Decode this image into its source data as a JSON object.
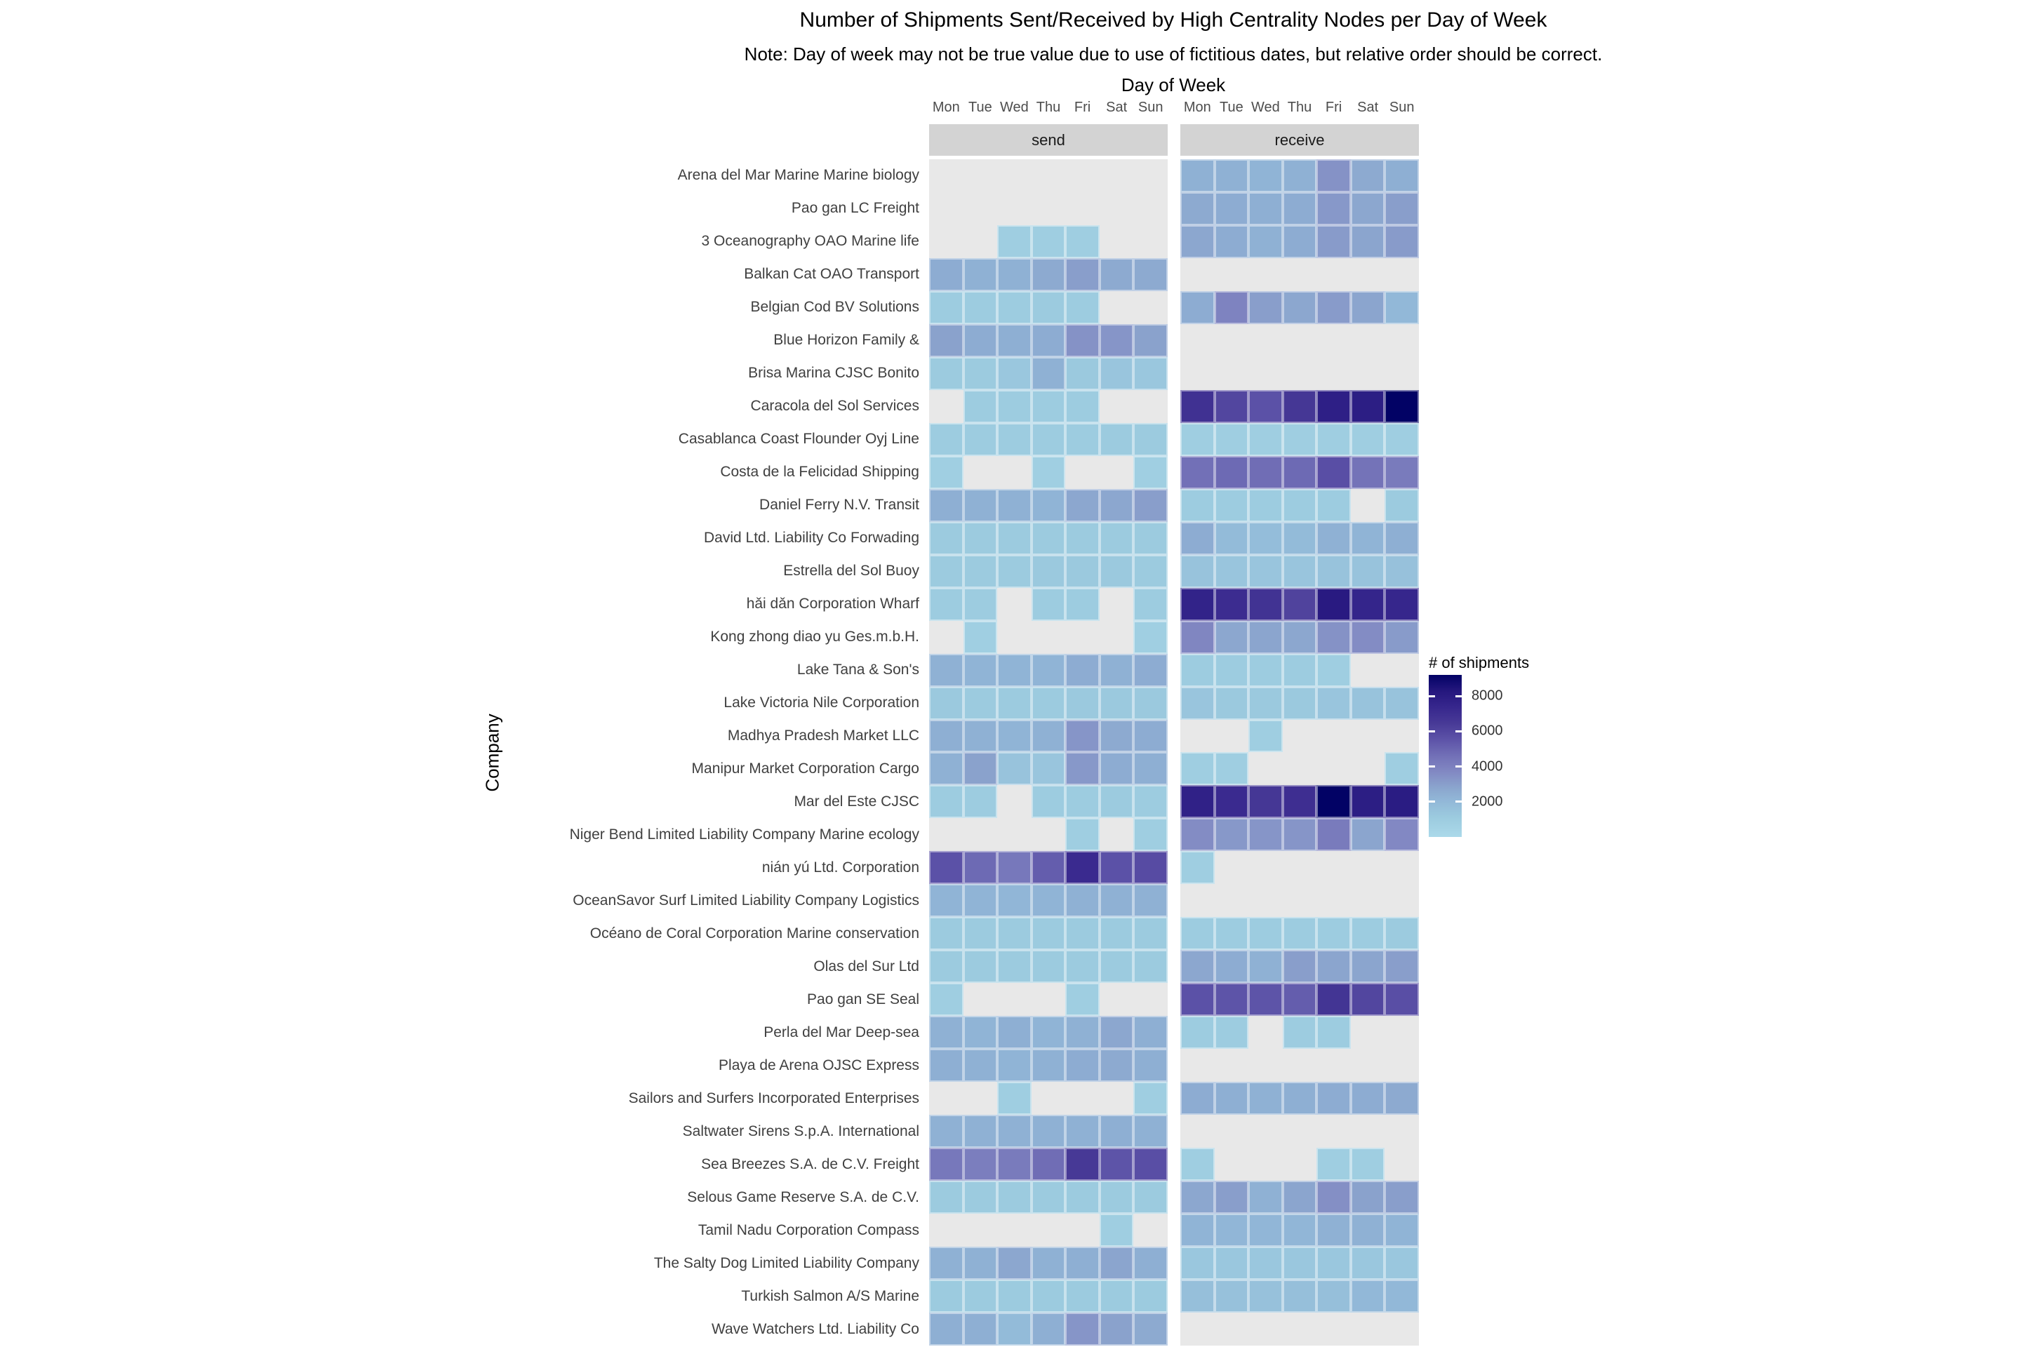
{
  "title": "Number of Shipments Sent/Received by High Centrality Nodes per Day of Week",
  "subtitle": "Note: Day of week may not be true value due to use of fictitious dates, but relative order should be correct.",
  "axis": {
    "x_title": "Day of Week",
    "y_title": "Company"
  },
  "legend": {
    "title": "# of shipments",
    "ticks": [
      8000,
      6000,
      4000,
      2000
    ]
  },
  "chart_data": {
    "type": "heatmap",
    "facets": [
      "send",
      "receive"
    ],
    "days": [
      "Mon",
      "Tue",
      "Wed",
      "Thu",
      "Fri",
      "Sat",
      "Sun"
    ],
    "value_domain": [
      0,
      9200
    ],
    "na_color": "#E8E8E8",
    "strip_color": "#D3D3D3",
    "color_stops": [
      {
        "t": 0.0,
        "c": "#ABD9EA"
      },
      {
        "t": 0.12,
        "c": "#9CCBDF"
      },
      {
        "t": 0.22,
        "c": "#92B8D8"
      },
      {
        "t": 0.3,
        "c": "#8BA6CE"
      },
      {
        "t": 0.4,
        "c": "#8289C3"
      },
      {
        "t": 0.5,
        "c": "#7270B7"
      },
      {
        "t": 0.6,
        "c": "#5D53A8"
      },
      {
        "t": 0.7,
        "c": "#483A97"
      },
      {
        "t": 0.8,
        "c": "#37278D"
      },
      {
        "t": 0.9,
        "c": "#25177E"
      },
      {
        "t": 1.0,
        "c": "#020265"
      }
    ],
    "companies": [
      "Arena del Mar Marine Marine biology",
      "Pao gan LC Freight",
      "3 Oceanography OAO Marine life",
      "Balkan Cat OAO Transport",
      "Belgian Cod BV Solutions",
      "Blue Horizon Family &",
      "Brisa Marina CJSC Bonito",
      "Caracola del Sol Services",
      "Casablanca Coast  Flounder Oyj Line",
      "Costa de la Felicidad Shipping",
      "Daniel Ferry N.V. Transit",
      "David Ltd. Liability Co Forwading",
      "Estrella del Sol Buoy",
      "hǎi dǎn Corporation Wharf",
      "Kong zhong diao yu  Ges.m.b.H.",
      "Lake Tana  & Son's",
      "Lake Victoria Nile   Corporation",
      "Madhya Pradesh  Market LLC",
      "Manipur  Market Corporation Cargo",
      "Mar del Este CJSC",
      "Niger Bend   Limited Liability Company Marine ecology",
      "nián yú Ltd. Corporation",
      "OceanSavor Surf Limited Liability Company Logistics",
      "Océano de Coral Corporation Marine conservation",
      "Olas del Sur Ltd",
      "Pao gan SE Seal",
      "Perla del Mar Deep-sea",
      "Playa de Arena OJSC Express",
      "Sailors and Surfers Incorporated Enterprises",
      "Saltwater Sirens S.p.A. International",
      "Sea Breezes S.A. de C.V. Freight",
      "Selous Game Reserve  S.A. de C.V.",
      "Tamil Nadu   Corporation Compass",
      "The Salty Dog Limited Liability Company",
      "Turkish Salmon A/S Marine",
      "Wave Watchers Ltd. Liability Co"
    ],
    "send": [
      [
        null,
        null,
        null,
        null,
        null,
        null,
        null
      ],
      [
        null,
        null,
        null,
        null,
        null,
        null,
        null
      ],
      [
        null,
        null,
        900,
        900,
        900,
        null,
        null
      ],
      [
        2500,
        2300,
        2300,
        2600,
        3000,
        2600,
        2600
      ],
      [
        1000,
        1000,
        1000,
        1100,
        1000,
        null,
        null
      ],
      [
        2900,
        2500,
        2400,
        2500,
        3400,
        3300,
        2900
      ],
      [
        1100,
        1100,
        1300,
        2300,
        1200,
        1400,
        1300
      ],
      [
        null,
        1000,
        1000,
        1000,
        1000,
        null,
        null
      ],
      [
        1000,
        1000,
        1000,
        1000,
        1000,
        1100,
        1100
      ],
      [
        800,
        null,
        null,
        800,
        null,
        null,
        800
      ],
      [
        2400,
        2300,
        2300,
        2200,
        2700,
        2700,
        3000
      ],
      [
        1100,
        1100,
        1100,
        1100,
        1100,
        1100,
        1100
      ],
      [
        1100,
        1100,
        1100,
        1200,
        1200,
        1200,
        1100
      ],
      [
        1000,
        1000,
        null,
        1000,
        1000,
        null,
        1000
      ],
      [
        null,
        800,
        null,
        null,
        null,
        null,
        800
      ],
      [
        2300,
        2200,
        2200,
        2200,
        2500,
        2300,
        2500
      ],
      [
        1200,
        1100,
        1100,
        1100,
        1200,
        1200,
        1200
      ],
      [
        2400,
        2300,
        2200,
        2300,
        3300,
        2600,
        2500
      ],
      [
        2300,
        2900,
        1500,
        1400,
        3200,
        2500,
        2400
      ],
      [
        1000,
        1000,
        null,
        1000,
        1000,
        1100,
        1000
      ],
      [
        null,
        null,
        null,
        null,
        900,
        null,
        900
      ],
      [
        5600,
        4800,
        4300,
        5200,
        7200,
        5600,
        5800
      ],
      [
        2200,
        2200,
        2100,
        2200,
        2300,
        2300,
        2300
      ],
      [
        1100,
        1100,
        1100,
        1100,
        1100,
        1100,
        1100
      ],
      [
        1100,
        1100,
        1100,
        1100,
        1100,
        1100,
        1100
      ],
      [
        900,
        null,
        null,
        null,
        900,
        null,
        null
      ],
      [
        2300,
        2200,
        2400,
        2200,
        2300,
        2700,
        2400
      ],
      [
        2400,
        2300,
        2200,
        2300,
        2500,
        2600,
        2400
      ],
      [
        null,
        null,
        900,
        null,
        null,
        null,
        900
      ],
      [
        2300,
        2300,
        2300,
        2300,
        2300,
        2400,
        2300
      ],
      [
        4300,
        4100,
        4200,
        4700,
        6500,
        5500,
        5700
      ],
      [
        1100,
        1100,
        1100,
        1100,
        1100,
        1100,
        1100
      ],
      [
        null,
        null,
        null,
        null,
        null,
        900,
        null
      ],
      [
        2300,
        2300,
        2700,
        2300,
        2400,
        2800,
        2400
      ],
      [
        1100,
        1100,
        1100,
        1100,
        1100,
        1100,
        1100
      ],
      [
        2400,
        2400,
        1900,
        2400,
        3300,
        2900,
        2600
      ]
    ],
    "receive": [
      [
        2300,
        2300,
        2200,
        2300,
        3400,
        2600,
        2400
      ],
      [
        2600,
        2500,
        2400,
        2500,
        3200,
        2700,
        3000
      ],
      [
        2700,
        2500,
        2300,
        2500,
        3100,
        2800,
        3100
      ],
      [
        null,
        null,
        null,
        null,
        null,
        null,
        null
      ],
      [
        2500,
        3900,
        3000,
        2700,
        3100,
        2800,
        2000
      ],
      [
        null,
        null,
        null,
        null,
        null,
        null,
        null
      ],
      [
        null,
        null,
        null,
        null,
        null,
        null,
        null
      ],
      [
        6900,
        6000,
        5600,
        6600,
        7800,
        7900,
        9200
      ],
      [
        900,
        900,
        900,
        900,
        900,
        900,
        900
      ],
      [
        4600,
        4800,
        4700,
        4800,
        5700,
        4500,
        4200
      ],
      [
        1000,
        1000,
        1000,
        1000,
        1000,
        null,
        1100
      ],
      [
        2500,
        1900,
        1800,
        1900,
        2300,
        2200,
        2400
      ],
      [
        1500,
        1400,
        1400,
        1400,
        1500,
        1500,
        1600
      ],
      [
        7600,
        7100,
        6800,
        6100,
        8100,
        7500,
        7400
      ],
      [
        3800,
        2700,
        2800,
        2700,
        3400,
        3600,
        3100
      ],
      [
        1000,
        1000,
        1000,
        1000,
        900,
        null,
        null
      ],
      [
        1400,
        1200,
        1200,
        1200,
        1400,
        1500,
        1500
      ],
      [
        null,
        null,
        900,
        null,
        null,
        null,
        null
      ],
      [
        900,
        900,
        null,
        null,
        null,
        null,
        900
      ],
      [
        7700,
        7200,
        6600,
        7000,
        9200,
        7900,
        8000
      ],
      [
        3600,
        3200,
        3300,
        3300,
        4200,
        2800,
        3700
      ],
      [
        900,
        null,
        null,
        null,
        null,
        null,
        null
      ],
      [
        null,
        null,
        null,
        null,
        null,
        null,
        null
      ],
      [
        1000,
        1000,
        1000,
        1000,
        1000,
        1000,
        1100
      ],
      [
        2700,
        2500,
        2300,
        3000,
        2800,
        2800,
        3000
      ],
      [
        5600,
        5500,
        5500,
        5200,
        6700,
        6000,
        5700
      ],
      [
        1000,
        1000,
        null,
        1000,
        1000,
        null,
        null
      ],
      [
        null,
        null,
        null,
        null,
        null,
        null,
        null
      ],
      [
        2500,
        2400,
        2300,
        2400,
        2500,
        2500,
        2600
      ],
      [
        null,
        null,
        null,
        null,
        null,
        null,
        null
      ],
      [
        900,
        null,
        null,
        null,
        900,
        900,
        null
      ],
      [
        2700,
        3000,
        2300,
        2800,
        3500,
        2900,
        3000
      ],
      [
        2200,
        2100,
        2100,
        2100,
        2300,
        2300,
        2200
      ],
      [
        1300,
        1300,
        1300,
        1300,
        1300,
        1300,
        1300
      ],
      [
        1700,
        1600,
        1600,
        1700,
        1700,
        2000,
        2000
      ],
      [
        null,
        null,
        null,
        null,
        null,
        null,
        null
      ]
    ]
  }
}
